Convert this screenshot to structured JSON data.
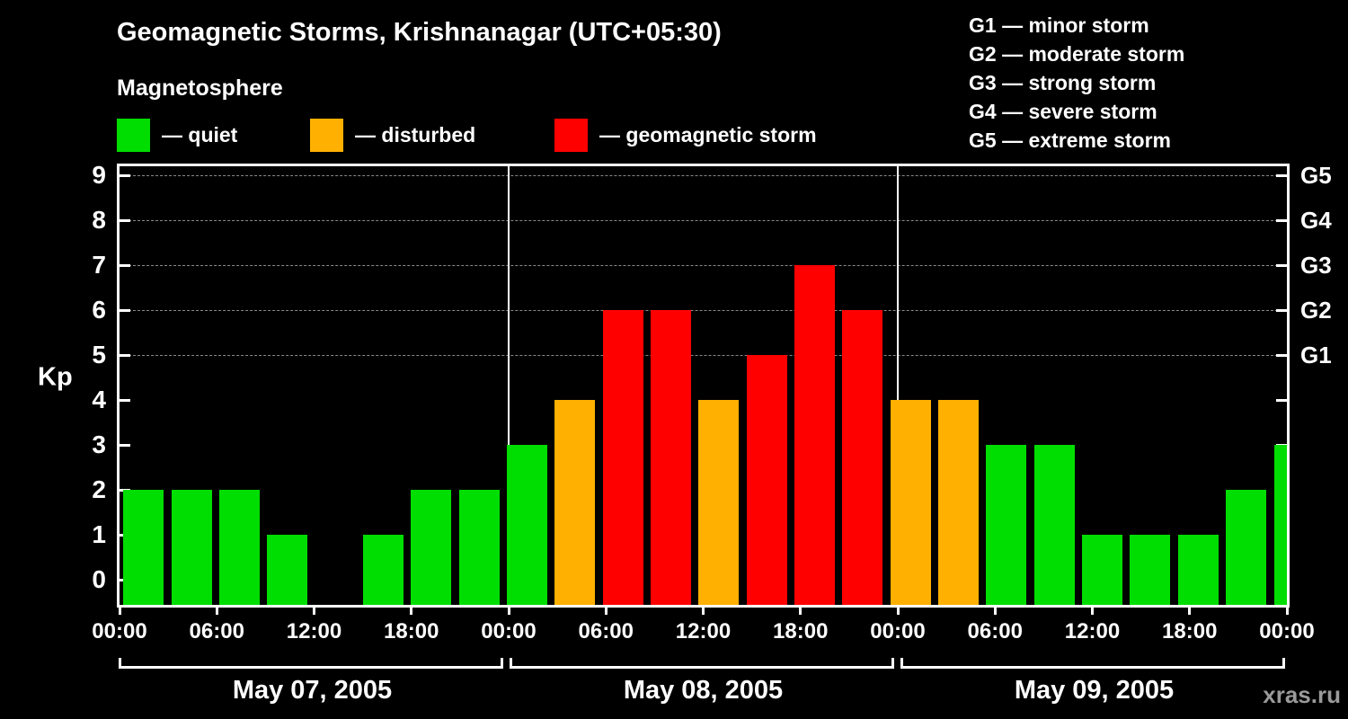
{
  "title": "Geomagnetic Storms, Krishnanagar (UTC+05:30)",
  "subtitle": "Magnetosphere",
  "legend": [
    {
      "key": "quiet",
      "label": "— quiet",
      "color": "#00dd00"
    },
    {
      "key": "disturbed",
      "label": "— disturbed",
      "color": "#ffb000"
    },
    {
      "key": "storm",
      "label": "— geomagnetic storm",
      "color": "#ff0000"
    }
  ],
  "storm_scale_legend": [
    "G1 — minor storm",
    "G2 — moderate storm",
    "G3 — strong storm",
    "G4 — severe storm",
    "G5 — extreme storm"
  ],
  "watermark": "xras.ru",
  "chart_data": {
    "type": "bar",
    "title": "Geomagnetic Storms, Krishnanagar (UTC+05:30)",
    "ylabel": "Kp",
    "ylim": [
      0,
      9
    ],
    "y_ticks": [
      0,
      1,
      2,
      3,
      4,
      5,
      6,
      7,
      8,
      9
    ],
    "gridlines_at_kp": [
      5,
      6,
      7,
      8,
      9
    ],
    "grid": "dashed horizontal at G-levels only",
    "legend_position": "top-left and top-right",
    "x_tick_labels": [
      "00:00",
      "06:00",
      "12:00",
      "18:00",
      "00:00",
      "06:00",
      "12:00",
      "18:00",
      "00:00",
      "06:00",
      "12:00",
      "18:00",
      "00:00"
    ],
    "right_axis_labels": [
      {
        "label": "G1",
        "kp": 5
      },
      {
        "label": "G2",
        "kp": 6
      },
      {
        "label": "G3",
        "kp": 7
      },
      {
        "label": "G4",
        "kp": 8
      },
      {
        "label": "G5",
        "kp": 9
      }
    ],
    "days": [
      {
        "date": "May 07, 2005",
        "values": [
          2,
          2,
          2,
          1,
          0,
          1,
          2,
          2
        ]
      },
      {
        "date": "May 08, 2005",
        "values": [
          3,
          4,
          6,
          6,
          4,
          5,
          7,
          6
        ]
      },
      {
        "date": "May 09, 2005",
        "values": [
          4,
          4,
          3,
          3,
          1,
          1,
          1,
          2
        ]
      }
    ],
    "interval_hours": 3,
    "next_day_partial_value": 3,
    "color_thresholds": {
      "quiet_max": 3,
      "disturbed_max": 4
    },
    "colors": {
      "quiet": "#00dd00",
      "disturbed": "#ffb000",
      "storm": "#ff0000",
      "grid": "#8a8a8a",
      "axis": "#ffffff",
      "background": "#000000",
      "text": "#ffffff",
      "watermark": "#9a9a9a"
    }
  }
}
